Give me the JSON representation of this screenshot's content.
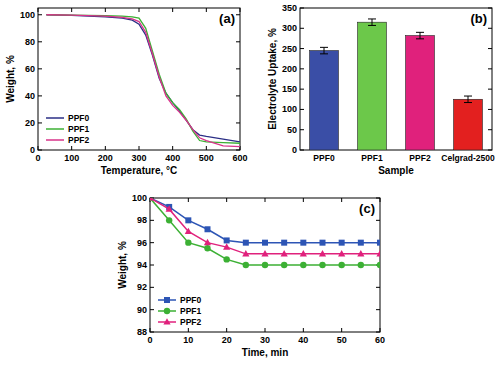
{
  "chart_data": [
    {
      "type": "line",
      "title": "(a)",
      "x_label": "Temperature, °C",
      "y_label": "Weight, %",
      "x": [
        25,
        100,
        200,
        250,
        280,
        300,
        320,
        340,
        360,
        380,
        400,
        420,
        440,
        460,
        480,
        500,
        550,
        600
      ],
      "series": [
        {
          "name": "PPF0",
          "color": "#2b2f86",
          "values": [
            100,
            99.6,
            98.5,
            97.5,
            96,
            93,
            85,
            70,
            53,
            42,
            35,
            29,
            22,
            15,
            11,
            10,
            8,
            6
          ]
        },
        {
          "name": "PPF1",
          "color": "#3cb034",
          "values": [
            100,
            99.8,
            99.3,
            99,
            98.5,
            97.5,
            90,
            73,
            56,
            42,
            35,
            30,
            23,
            14,
            7,
            6,
            5.5,
            5
          ]
        },
        {
          "name": "PPF2",
          "color": "#d8338a",
          "values": [
            100,
            99.7,
            99,
            98,
            97,
            95,
            87,
            71,
            54,
            40,
            33,
            28,
            22,
            15,
            9,
            7,
            3,
            2.5
          ]
        }
      ],
      "xlim": [
        0,
        600
      ],
      "xticks": [
        0,
        100,
        200,
        300,
        400,
        500,
        600
      ],
      "ylim": [
        0,
        105
      ],
      "yticks": [
        0,
        20,
        40,
        60,
        80,
        100
      ],
      "grid": false,
      "legend": "lower left"
    },
    {
      "type": "bar",
      "title": "(b)",
      "x_label": "Sample",
      "y_label": "Electrolyte Uptake, %",
      "categories": [
        "PPF0",
        "PPF1",
        "PPF2",
        "Celgrad-2500"
      ],
      "values": [
        245,
        315,
        282,
        125
      ],
      "errors": [
        8,
        8,
        8,
        8
      ],
      "colors": [
        "#3a4ea6",
        "#6cc84a",
        "#e0217c",
        "#e3201f"
      ],
      "ylim": [
        0,
        350
      ],
      "yticks": [
        0,
        50,
        100,
        150,
        200,
        250,
        300,
        350
      ],
      "grid": false
    },
    {
      "type": "line",
      "title": "(c)",
      "x_label": "Time, min",
      "y_label": "Weight, %",
      "x": [
        0,
        5,
        10,
        15,
        20,
        25,
        30,
        35,
        40,
        45,
        50,
        55,
        60
      ],
      "series": [
        {
          "name": "PPF0",
          "color": "#2d55b5",
          "marker": "square",
          "values": [
            100,
            99.2,
            98,
            97.2,
            96.2,
            96,
            96,
            96,
            96,
            96,
            96,
            96,
            96
          ]
        },
        {
          "name": "PPF1",
          "color": "#3cb034",
          "marker": "circle",
          "values": [
            100,
            98,
            96,
            95.5,
            94.5,
            94,
            94,
            94,
            94,
            94,
            94,
            94,
            94
          ]
        },
        {
          "name": "PPF2",
          "color": "#e0217c",
          "marker": "triangle",
          "values": [
            100,
            99,
            97,
            96,
            95.6,
            95,
            95,
            95,
            95,
            95,
            95,
            95,
            95
          ]
        }
      ],
      "xlim": [
        0,
        60
      ],
      "xticks": [
        0,
        10,
        20,
        30,
        40,
        50,
        60
      ],
      "ylim": [
        88,
        100
      ],
      "yticks": [
        88,
        90,
        92,
        94,
        96,
        98,
        100
      ],
      "grid": false,
      "legend": "lower left"
    }
  ]
}
